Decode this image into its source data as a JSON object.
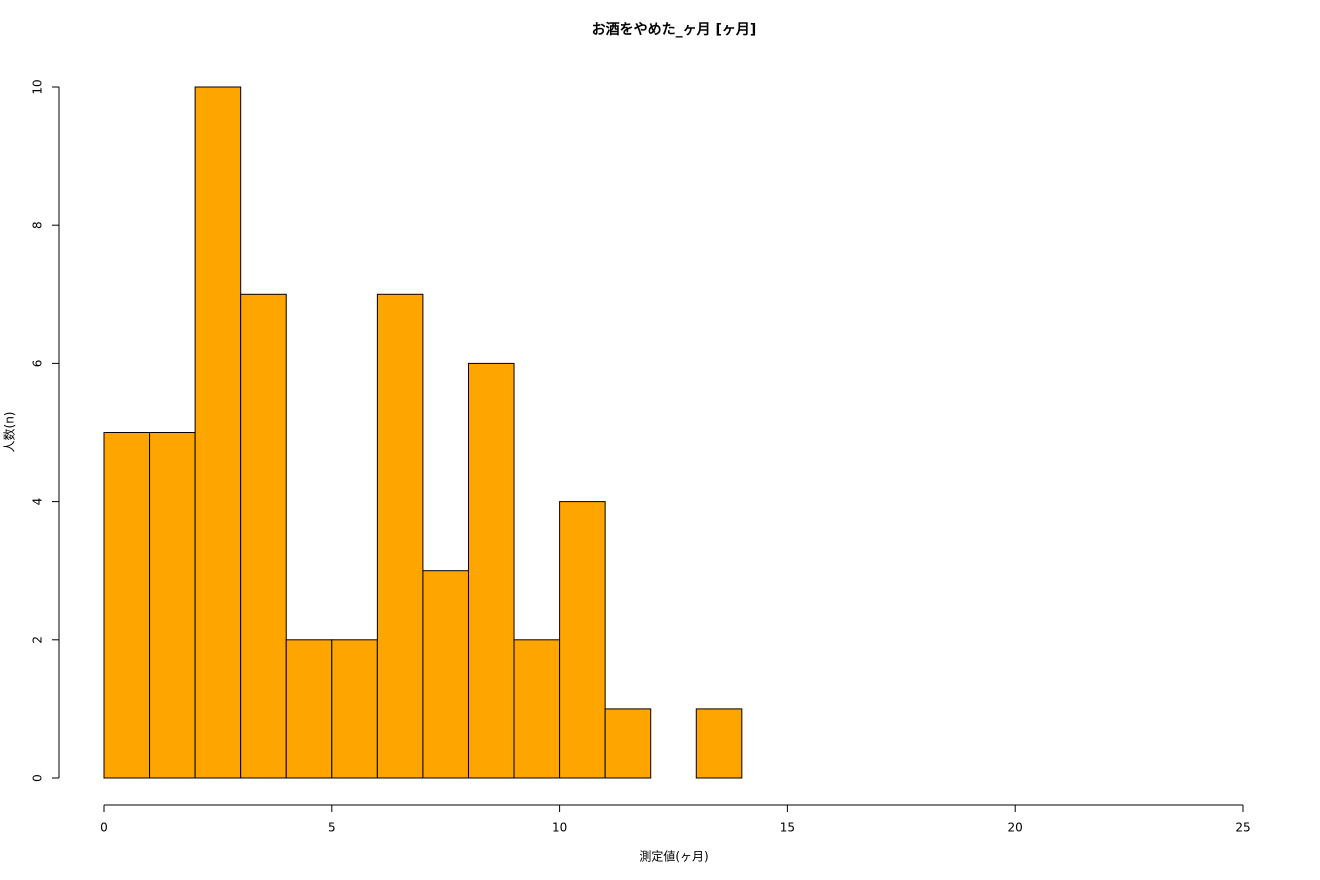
{
  "chart_data": {
    "type": "histogram",
    "title": "お酒をやめた_ヶ月 [ヶ月]",
    "x_label": "測定値(ヶ月)",
    "y_label": "人数(n)",
    "bins": [
      0,
      1,
      2,
      3,
      4,
      5,
      6,
      7,
      8,
      9,
      10,
      11,
      12,
      13,
      14
    ],
    "values": [
      5,
      5,
      10,
      7,
      2,
      2,
      7,
      3,
      6,
      2,
      4,
      1,
      0,
      1
    ],
    "color": "#ffa500",
    "xlim": [
      0,
      25
    ],
    "xticks": [
      0,
      5,
      10,
      15,
      20,
      25
    ],
    "ylim": [
      0,
      10
    ],
    "yticks": [
      0,
      2,
      4,
      6,
      8,
      10
    ]
  }
}
